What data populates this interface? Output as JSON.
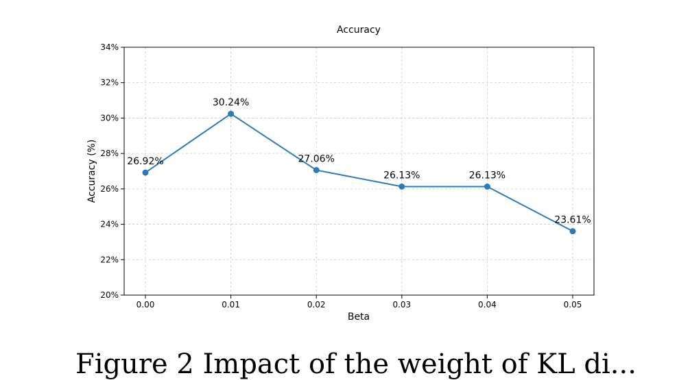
{
  "chart_data": {
    "type": "line",
    "title": "Accuracy",
    "xlabel": "Beta",
    "ylabel": "Accuracy (%)",
    "categories": [
      "0.00",
      "0.01",
      "0.02",
      "0.03",
      "0.04",
      "0.05"
    ],
    "x": [
      0.0,
      0.01,
      0.02,
      0.03,
      0.04,
      0.05
    ],
    "values": [
      26.92,
      30.24,
      27.06,
      26.13,
      26.13,
      23.61
    ],
    "data_labels": [
      "26.92%",
      "30.24%",
      "27.06%",
      "26.13%",
      "26.13%",
      "23.61%"
    ],
    "ylim": [
      20,
      34
    ],
    "yticks": [
      20,
      22,
      24,
      26,
      28,
      30,
      32,
      34
    ],
    "ytick_labels": [
      "20%",
      "22%",
      "24%",
      "26%",
      "28%",
      "30%",
      "32%",
      "34%"
    ],
    "grid": true,
    "marker": "circle",
    "color": "#2e7ab6"
  },
  "caption": {
    "text": "Figure 2 Impact of the weight of KL di..."
  }
}
